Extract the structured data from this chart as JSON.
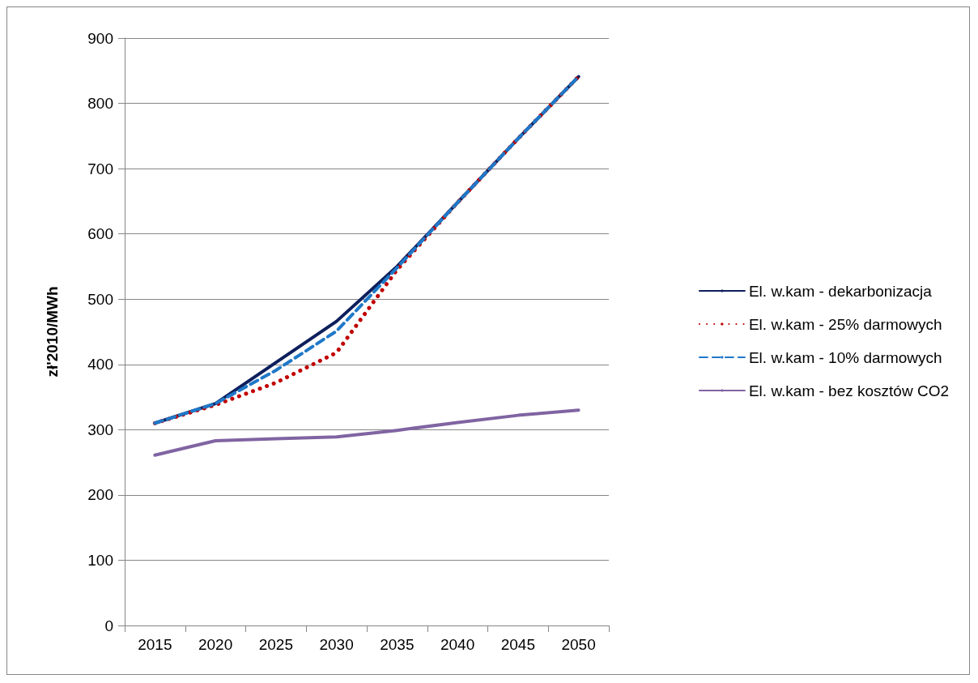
{
  "chart_data": {
    "type": "line",
    "ylabel": "zł'2010/MWh",
    "categories": [
      "2015",
      "2020",
      "2025",
      "2030",
      "2035",
      "2040",
      "2045",
      "2050"
    ],
    "series": [
      {
        "name": "El. w.kam - dekarbonizacja",
        "color": "#0d1f5c",
        "line_style": "solid",
        "values": [
          310,
          340,
          403,
          466,
          550,
          648,
          746,
          841
        ]
      },
      {
        "name": "El. w.kam - 25% darmowych",
        "color": "#c00000",
        "line_style": "dotted",
        "values": [
          310,
          338,
          372,
          418,
          545,
          648,
          746,
          841
        ]
      },
      {
        "name": "El. w.kam - 10% darmowych",
        "color": "#1f78c8",
        "line_style": "dashed",
        "values": [
          310,
          340,
          391,
          451,
          548,
          648,
          746,
          841
        ]
      },
      {
        "name": "El. w.kam - bez kosztów CO2",
        "color": "#8064a2",
        "line_style": "solid",
        "values": [
          261,
          283,
          286,
          289,
          299,
          311,
          322,
          330
        ]
      }
    ],
    "ylim": [
      0,
      900
    ],
    "yticks": [
      0,
      100,
      200,
      300,
      400,
      500,
      600,
      700,
      800,
      900
    ],
    "grid": "y",
    "legend": "right",
    "marker": "none"
  }
}
